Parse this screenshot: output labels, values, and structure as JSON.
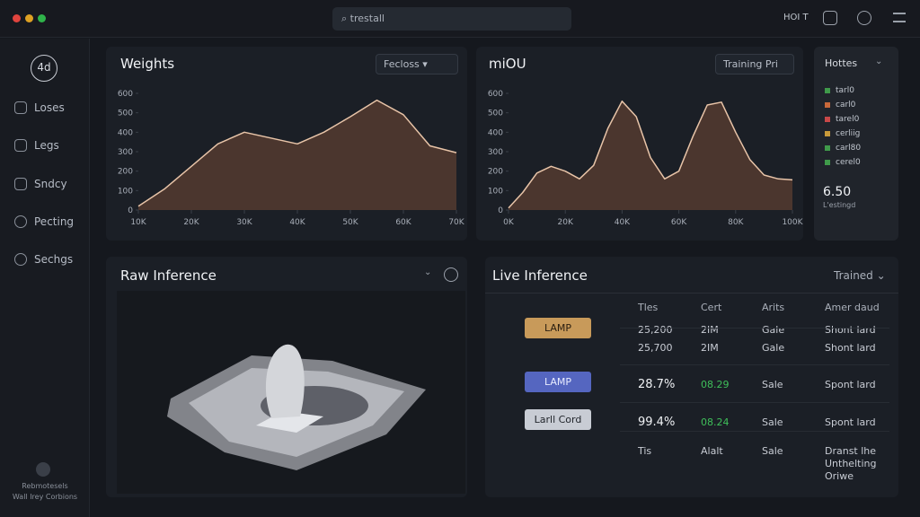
{
  "topbar": {
    "search": "trestall",
    "right": "HOI T"
  },
  "sidebar": {
    "logo": "4d",
    "items": [
      "Loses",
      "Legs",
      "Sndcy",
      "Pecting",
      "Sechgs"
    ],
    "footer": [
      "Rebmotesels",
      "Wall Irey Corbions"
    ]
  },
  "weights": {
    "title": "Weights",
    "dropdown": "Fecloss",
    "chart_data": {
      "type": "area",
      "color": "#e8c4a8",
      "x": [
        10,
        15,
        20,
        25,
        30,
        35,
        40,
        45,
        50,
        55,
        60,
        65,
        70
      ],
      "values": [
        20,
        110,
        225,
        340,
        400,
        370,
        340,
        400,
        480,
        565,
        490,
        330,
        295
      ],
      "xlim": [
        10,
        70
      ],
      "xticks": [
        {
          "value": 10,
          "label": "10K"
        },
        {
          "value": 20,
          "label": "20K"
        },
        {
          "value": 30,
          "label": "30K"
        },
        {
          "value": 40,
          "label": "40K"
        },
        {
          "value": 50,
          "label": "50K"
        },
        {
          "value": 60,
          "label": "60K"
        },
        {
          "value": 70,
          "label": "70K"
        }
      ],
      "ylim": [
        0,
        600
      ],
      "yticks": [
        0,
        100,
        200,
        300,
        400,
        500,
        600
      ]
    }
  },
  "miou": {
    "title": "miOU",
    "dropdown": "Training Pri",
    "chart_data": {
      "type": "area",
      "color": "#e8c4a8",
      "x": [
        0,
        5,
        10,
        15,
        20,
        25,
        30,
        35,
        40,
        45,
        50,
        55,
        60,
        65,
        70,
        75,
        80,
        85,
        90,
        95,
        100
      ],
      "values": [
        10,
        90,
        190,
        225,
        200,
        160,
        230,
        420,
        560,
        480,
        270,
        160,
        200,
        380,
        540,
        555,
        400,
        260,
        180,
        160,
        155
      ],
      "xlim": [
        0,
        100
      ],
      "xticks": [
        {
          "value": 0,
          "label": "0K"
        },
        {
          "value": 20,
          "label": "20K"
        },
        {
          "value": 40,
          "label": "40K"
        },
        {
          "value": 60,
          "label": "60K"
        },
        {
          "value": 80,
          "label": "80K"
        },
        {
          "value": 100,
          "label": "100K"
        }
      ],
      "ylim": [
        0,
        600
      ],
      "yticks": [
        0,
        100,
        200,
        300,
        400,
        500,
        600
      ]
    }
  },
  "legend_panel": {
    "title": "Hottes",
    "items": [
      {
        "name": "tarl0",
        "color": "#3f9a4a"
      },
      {
        "name": "carl0",
        "color": "#c8683a"
      },
      {
        "name": "tarel0",
        "color": "#c84848"
      },
      {
        "name": "cerliig",
        "color": "#c89a3a"
      },
      {
        "name": "carl80",
        "color": "#3f9a4a"
      },
      {
        "name": "cerel0",
        "color": "#3f9a4a"
      }
    ],
    "value": "6.50",
    "caption": "L'estingd"
  },
  "raw_inference": {
    "title": "Raw Inference"
  },
  "live_inference": {
    "title": "Live Inference",
    "dropdown": "Trained",
    "headers": [
      "Tles",
      "Cert",
      "Arits",
      "Amer daud"
    ],
    "rows": [
      {
        "badge": "LAMP",
        "cells": [
          "25,200",
          "2IM",
          "Gale",
          "Shont lard"
        ]
      },
      {
        "cells": [
          "25,700",
          "2IM",
          "Gale",
          "Shont lard"
        ]
      },
      {
        "badge": "LAMP",
        "cells": [
          "28.7%",
          "08.29",
          "Sale",
          "Spont lard"
        ]
      },
      {
        "badge": "Larll Cord",
        "cells": [
          "99.4%",
          "08.24",
          "Sale",
          "Spont lard"
        ]
      },
      {
        "cells": [
          "Tis",
          "Alalt",
          "Sale",
          "Dranst lhe Unthelting Oriwe"
        ]
      }
    ]
  }
}
